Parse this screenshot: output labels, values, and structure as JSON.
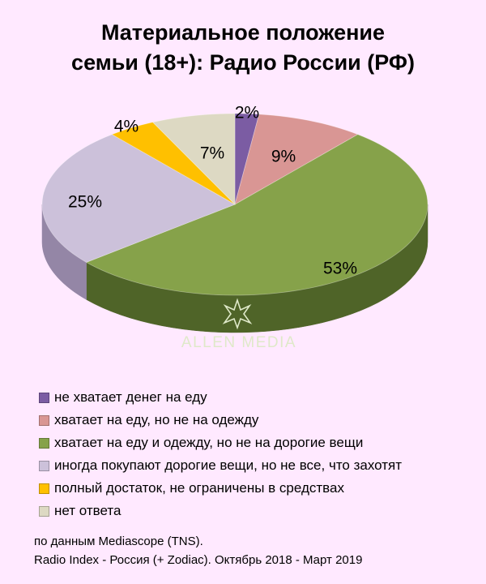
{
  "title_lines": [
    "Материальное положение",
    "семьи (18+): Радио России (РФ)"
  ],
  "watermark": "ALLEN MEDIA",
  "chart_data": {
    "type": "pie",
    "title": "Материальное положение семьи (18+): Радио России (РФ)",
    "labels": [
      "не хватает денег на еду",
      "хватает на еду, но не на одежду",
      "хватает на еду и одежду, но не на дорогие вещи",
      "иногда покупают дорогие вещи, но не все, что захотят",
      "полный достаток, не ограничены в средствах",
      "нет ответа"
    ],
    "values": [
      2,
      9,
      53,
      25,
      4,
      7
    ],
    "value_labels": [
      "2%",
      "9%",
      "53%",
      "25%",
      "4%",
      "7%"
    ],
    "colors": [
      "#7b5ca3",
      "#d99694",
      "#86a24a",
      "#ccc1da",
      "#ffc000",
      "#ddd9c3"
    ],
    "side_colors": [
      "#4f3a6b",
      "#a15f5d",
      "#4f6428",
      "#9486a6",
      "#b38600",
      "#a39e86"
    ],
    "legend_position": "bottom"
  },
  "source_lines": [
    "по данным Mediascope (TNS).",
    "Radio Index - Россия (+ Zodiac). Октябрь 2018 - Март 2019"
  ]
}
